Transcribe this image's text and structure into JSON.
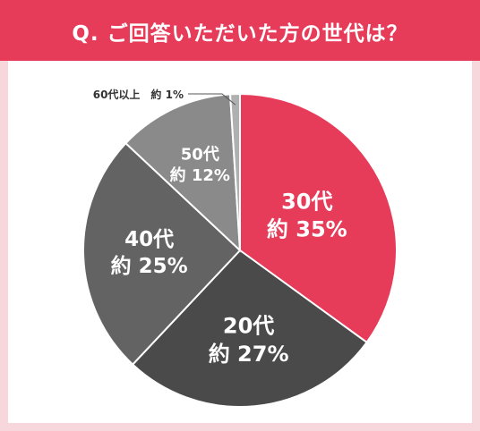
{
  "header": {
    "question": "Q. ご回答いただいた方の世代は？"
  },
  "colors": {
    "header": "#e63c5a",
    "background": "#f7d6dc",
    "slice_30s": "#e63c5a",
    "slice_20s": "#4a4a4a",
    "slice_40s": "#636363",
    "slice_50s": "#8a8a8a",
    "slice_60s": "#b0b0b0"
  },
  "chart_data": {
    "type": "pie",
    "title": "Q. ご回答いただいた方の世代は？",
    "start": "12 o'clock",
    "direction": "clockwise",
    "slices": [
      {
        "name": "30代",
        "value": 35,
        "label": "約 35%",
        "color": "#e63c5a"
      },
      {
        "name": "20代",
        "value": 27,
        "label": "約 27%",
        "color": "#4a4a4a"
      },
      {
        "name": "40代",
        "value": 25,
        "label": "約 25%",
        "color": "#636363"
      },
      {
        "name": "50代",
        "value": 12,
        "label": "約 12%",
        "color": "#8a8a8a"
      },
      {
        "name": "60代以上",
        "value": 1,
        "label": "約 1%",
        "color": "#b0b0b0"
      }
    ]
  }
}
